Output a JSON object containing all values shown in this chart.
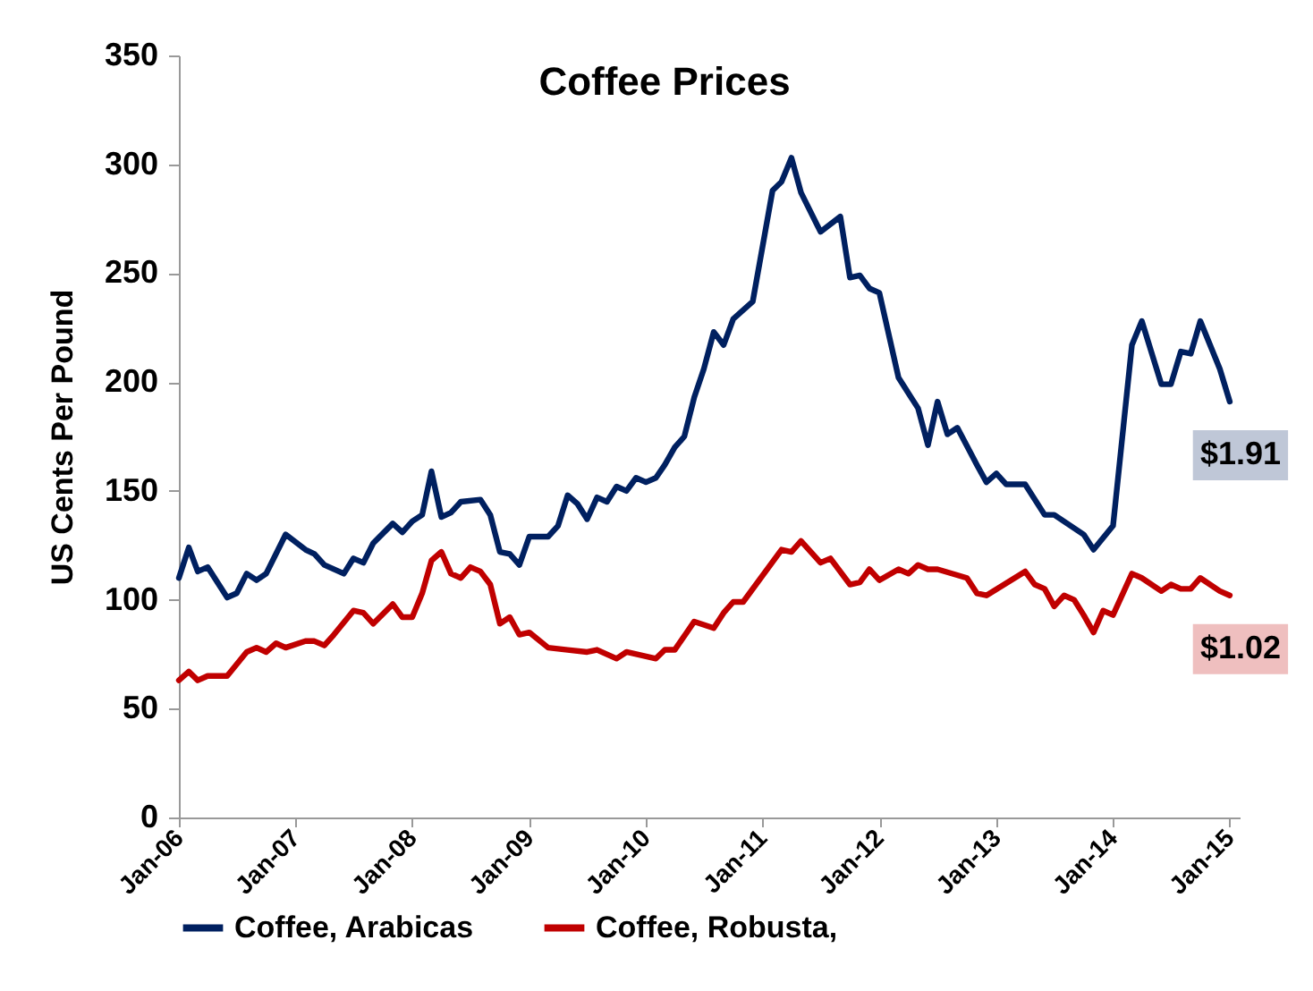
{
  "chart_data": {
    "type": "line",
    "title": "Coffee Prices",
    "ylabel": "US Cents Per Pound",
    "xlim": [
      "2006-01",
      "2015-02"
    ],
    "ylim": [
      0,
      350
    ],
    "xticks": [
      {
        "value": "2006-01",
        "label": "Jan-06"
      },
      {
        "value": "2007-01",
        "label": "Jan-07"
      },
      {
        "value": "2008-01",
        "label": "Jan-08"
      },
      {
        "value": "2009-01",
        "label": "Jan-09"
      },
      {
        "value": "2010-01",
        "label": "Jan-10"
      },
      {
        "value": "2011-01",
        "label": "Jan-11"
      },
      {
        "value": "2012-01",
        "label": "Jan-12"
      },
      {
        "value": "2013-01",
        "label": "Jan-13"
      },
      {
        "value": "2014-01",
        "label": "Jan-14"
      },
      {
        "value": "2015-01",
        "label": "Jan-15"
      }
    ],
    "yticks": [
      0,
      50,
      100,
      150,
      200,
      250,
      300,
      350
    ],
    "grid": false,
    "legend": "bottom",
    "marker": "none",
    "line_style": "solid",
    "series": [
      {
        "name": "Coffee, Arabicas",
        "color": "#002060",
        "x": [
          "2006-01",
          "2006-02",
          "2006-03",
          "2006-04",
          "2006-06",
          "2006-07",
          "2006-08",
          "2006-09",
          "2006-10",
          "2006-12",
          "2007-02",
          "2007-03",
          "2007-04",
          "2007-06",
          "2007-07",
          "2007-08",
          "2007-09",
          "2007-11",
          "2007-12",
          "2008-01",
          "2008-02",
          "2008-03",
          "2008-04",
          "2008-05",
          "2008-06",
          "2008-08",
          "2008-09",
          "2008-10",
          "2008-11",
          "2008-12",
          "2009-01",
          "2009-03",
          "2009-04",
          "2009-05",
          "2009-06",
          "2009-07",
          "2009-08",
          "2009-09",
          "2009-10",
          "2009-11",
          "2009-12",
          "2010-01",
          "2010-02",
          "2010-03",
          "2010-04",
          "2010-05",
          "2010-06",
          "2010-07",
          "2010-08",
          "2010-09",
          "2010-10",
          "2010-12",
          "2011-02",
          "2011-03",
          "2011-04",
          "2011-05",
          "2011-07",
          "2011-09",
          "2011-10",
          "2011-11",
          "2011-12",
          "2012-01",
          "2012-03",
          "2012-05",
          "2012-06",
          "2012-07",
          "2012-08",
          "2012-09",
          "2012-11",
          "2012-12",
          "2013-01",
          "2013-02",
          "2013-04",
          "2013-06",
          "2013-07",
          "2013-10",
          "2013-11",
          "2014-01",
          "2014-03",
          "2014-04",
          "2014-06",
          "2014-07",
          "2014-08",
          "2014-09",
          "2014-10",
          "2014-12",
          "2015-01"
        ],
        "values": [
          110,
          124,
          113,
          115,
          101,
          103,
          112,
          109,
          112,
          130,
          123,
          121,
          116,
          112,
          119,
          117,
          126,
          135,
          131,
          136,
          139,
          159,
          138,
          140,
          145,
          146,
          139,
          122,
          121,
          116,
          129,
          129,
          134,
          148,
          144,
          137,
          147,
          145,
          152,
          150,
          156,
          154,
          156,
          162,
          170,
          175,
          193,
          206,
          223,
          217,
          229,
          237,
          288,
          292,
          303,
          287,
          269,
          276,
          248,
          249,
          243,
          241,
          202,
          188,
          171,
          191,
          176,
          179,
          162,
          154,
          158,
          153,
          153,
          139,
          139,
          130,
          123,
          134,
          217,
          228,
          199,
          199,
          214,
          213,
          228,
          206,
          191
        ]
      },
      {
        "name": "Coffee, Robusta,",
        "color": "#c00000",
        "x": [
          "2006-01",
          "2006-02",
          "2006-03",
          "2006-04",
          "2006-06",
          "2006-08",
          "2006-09",
          "2006-10",
          "2006-11",
          "2006-12",
          "2007-02",
          "2007-03",
          "2007-04",
          "2007-05",
          "2007-07",
          "2007-08",
          "2007-09",
          "2007-11",
          "2007-12",
          "2008-01",
          "2008-02",
          "2008-03",
          "2008-04",
          "2008-05",
          "2008-06",
          "2008-07",
          "2008-08",
          "2008-09",
          "2008-10",
          "2008-11",
          "2008-12",
          "2009-01",
          "2009-03",
          "2009-05",
          "2009-07",
          "2009-08",
          "2009-10",
          "2009-11",
          "2010-02",
          "2010-03",
          "2010-04",
          "2010-06",
          "2010-08",
          "2010-09",
          "2010-10",
          "2010-11",
          "2011-03",
          "2011-04",
          "2011-05",
          "2011-07",
          "2011-08",
          "2011-10",
          "2011-11",
          "2011-12",
          "2012-01",
          "2012-03",
          "2012-04",
          "2012-05",
          "2012-06",
          "2012-07",
          "2012-10",
          "2012-11",
          "2012-12",
          "2013-04",
          "2013-05",
          "2013-06",
          "2013-07",
          "2013-08",
          "2013-09",
          "2013-10",
          "2013-11",
          "2013-12",
          "2014-01",
          "2014-03",
          "2014-04",
          "2014-06",
          "2014-07",
          "2014-08",
          "2014-09",
          "2014-10",
          "2014-12",
          "2015-01"
        ],
        "values": [
          63,
          67,
          63,
          65,
          65,
          76,
          78,
          76,
          80,
          78,
          81,
          81,
          79,
          84,
          95,
          94,
          89,
          98,
          92,
          92,
          103,
          118,
          122,
          112,
          110,
          115,
          113,
          107,
          89,
          92,
          84,
          85,
          78,
          77,
          76,
          77,
          73,
          76,
          73,
          77,
          77,
          90,
          87,
          94,
          99,
          99,
          123,
          122,
          127,
          117,
          119,
          107,
          108,
          114,
          109,
          114,
          112,
          116,
          114,
          114,
          110,
          103,
          102,
          113,
          107,
          105,
          97,
          102,
          100,
          93,
          85,
          95,
          93,
          112,
          110,
          104,
          107,
          105,
          105,
          110,
          104,
          102
        ]
      }
    ],
    "annotations": [
      {
        "text": "$1.91",
        "x": "2015-01",
        "y": 191
      },
      {
        "text": "$1.02",
        "x": "2015-01",
        "y": 102
      }
    ]
  }
}
